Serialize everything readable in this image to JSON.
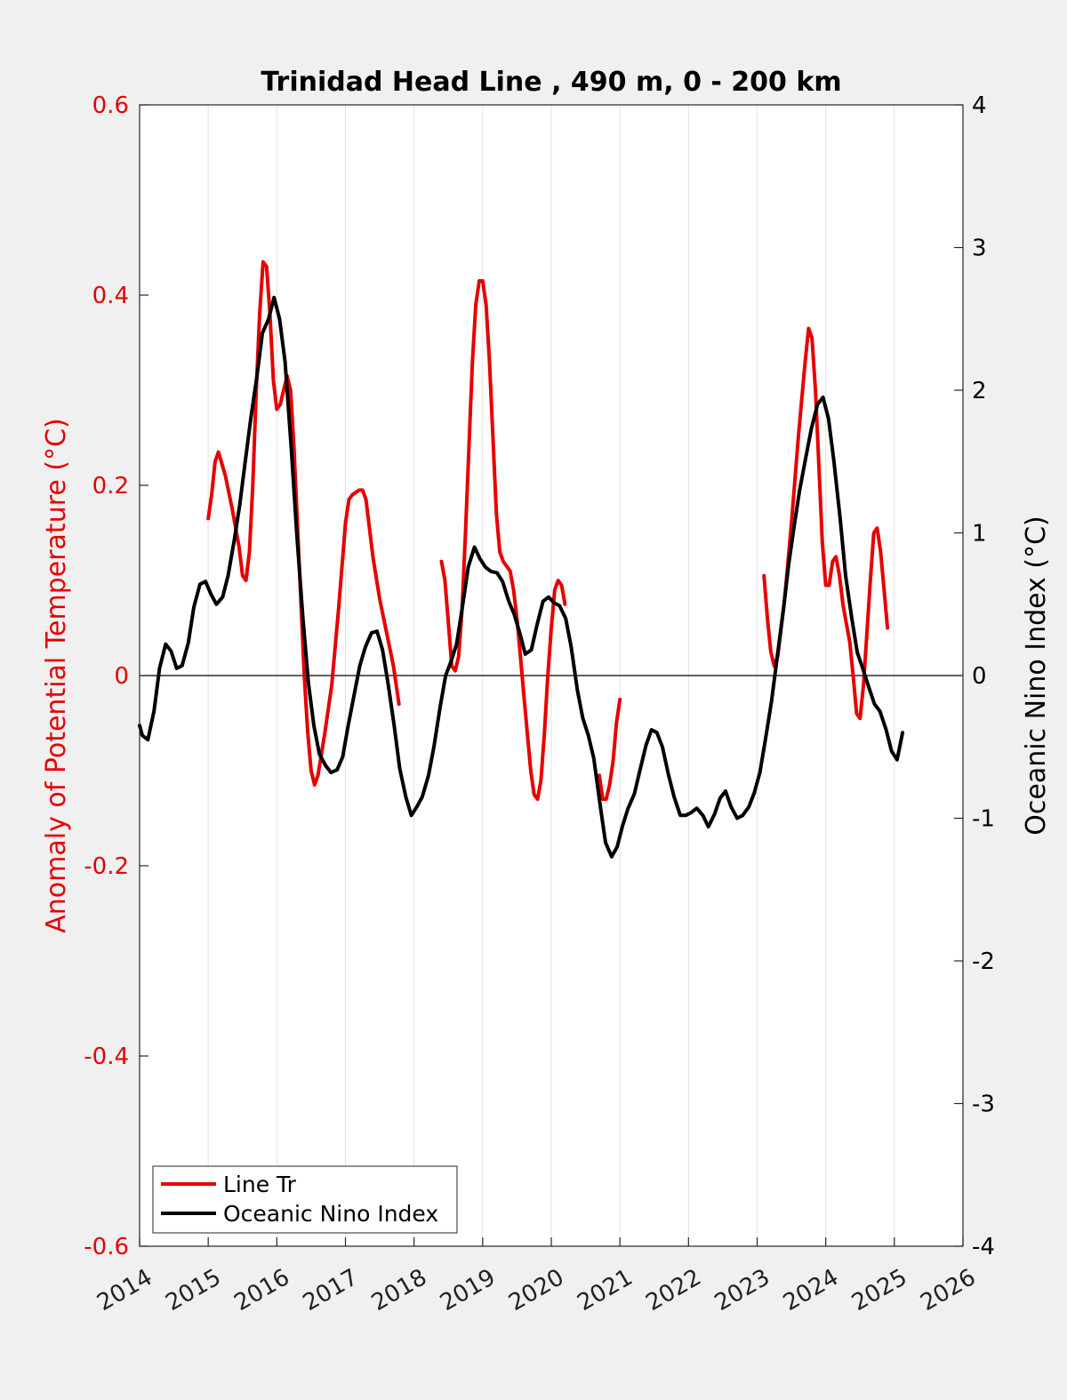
{
  "chart_data": {
    "type": "line",
    "title": "Trinidad Head Line , 490 m, 0 - 200 km",
    "ylabel": "Anomaly of Potential Temperature (°C)",
    "ylabel_right": "Oceanic Nino Index (°C)",
    "xlim": [
      2014,
      2026
    ],
    "ylim": [
      -0.6,
      0.6
    ],
    "ylim_right": [
      -4,
      4
    ],
    "x_ticks": [
      "2014",
      "2015",
      "2016",
      "2017",
      "2018",
      "2019",
      "2020",
      "2021",
      "2022",
      "2023",
      "2024",
      "2025",
      "2026"
    ],
    "y_ticks": [
      "-0.6",
      "-0.4",
      "-0.2",
      "0",
      "0.2",
      "0.4",
      "0.6"
    ],
    "y_ticks_right": [
      "-4",
      "-3",
      "-2",
      "-1",
      "0",
      "1",
      "2",
      "3",
      "4"
    ],
    "grid": "vertical",
    "legend_position": "bottom-left",
    "colors": {
      "line_tr": "#e60000",
      "oni": "#000000",
      "zero_line": "#000000"
    },
    "series": [
      {
        "name": "Line Tr",
        "axis": "left",
        "segments": [
          [
            [
              2015.0,
              0.165
            ],
            [
              2015.05,
              0.19
            ],
            [
              2015.1,
              0.225
            ],
            [
              2015.15,
              0.235
            ],
            [
              2015.25,
              0.21
            ],
            [
              2015.35,
              0.175
            ],
            [
              2015.45,
              0.135
            ],
            [
              2015.5,
              0.105
            ],
            [
              2015.55,
              0.1
            ],
            [
              2015.6,
              0.13
            ],
            [
              2015.65,
              0.2
            ],
            [
              2015.7,
              0.3
            ],
            [
              2015.75,
              0.38
            ],
            [
              2015.8,
              0.435
            ],
            [
              2015.85,
              0.43
            ],
            [
              2015.9,
              0.38
            ],
            [
              2015.95,
              0.31
            ],
            [
              2016.0,
              0.28
            ],
            [
              2016.05,
              0.285
            ],
            [
              2016.1,
              0.3
            ],
            [
              2016.15,
              0.315
            ],
            [
              2016.2,
              0.3
            ],
            [
              2016.25,
              0.24
            ],
            [
              2016.3,
              0.16
            ],
            [
              2016.35,
              0.08
            ],
            [
              2016.4,
              0.0
            ],
            [
              2016.45,
              -0.06
            ],
            [
              2016.5,
              -0.1
            ],
            [
              2016.55,
              -0.115
            ],
            [
              2016.6,
              -0.105
            ],
            [
              2016.7,
              -0.06
            ],
            [
              2016.8,
              -0.01
            ],
            [
              2016.9,
              0.07
            ],
            [
              2017.0,
              0.16
            ],
            [
              2017.05,
              0.185
            ],
            [
              2017.1,
              0.19
            ],
            [
              2017.2,
              0.195
            ],
            [
              2017.25,
              0.195
            ],
            [
              2017.3,
              0.185
            ],
            [
              2017.4,
              0.125
            ],
            [
              2017.5,
              0.08
            ],
            [
              2017.6,
              0.045
            ],
            [
              2017.7,
              0.01
            ],
            [
              2017.78,
              -0.03
            ]
          ],
          [
            [
              2018.4,
              0.12
            ],
            [
              2018.45,
              0.1
            ],
            [
              2018.5,
              0.055
            ],
            [
              2018.55,
              0.01
            ],
            [
              2018.6,
              0.005
            ],
            [
              2018.65,
              0.02
            ],
            [
              2018.7,
              0.07
            ],
            [
              2018.75,
              0.15
            ],
            [
              2018.8,
              0.24
            ],
            [
              2018.85,
              0.33
            ],
            [
              2018.9,
              0.39
            ],
            [
              2018.95,
              0.415
            ],
            [
              2019.0,
              0.415
            ],
            [
              2019.05,
              0.39
            ],
            [
              2019.1,
              0.33
            ],
            [
              2019.15,
              0.25
            ],
            [
              2019.2,
              0.17
            ],
            [
              2019.25,
              0.13
            ],
            [
              2019.3,
              0.12
            ],
            [
              2019.35,
              0.115
            ],
            [
              2019.4,
              0.11
            ],
            [
              2019.45,
              0.09
            ],
            [
              2019.5,
              0.06
            ],
            [
              2019.55,
              0.02
            ],
            [
              2019.6,
              -0.02
            ],
            [
              2019.65,
              -0.06
            ],
            [
              2019.7,
              -0.1
            ],
            [
              2019.75,
              -0.125
            ],
            [
              2019.8,
              -0.13
            ],
            [
              2019.85,
              -0.11
            ],
            [
              2019.9,
              -0.06
            ],
            [
              2019.95,
              0.0
            ],
            [
              2020.0,
              0.05
            ],
            [
              2020.05,
              0.09
            ],
            [
              2020.1,
              0.1
            ],
            [
              2020.15,
              0.095
            ],
            [
              2020.2,
              0.075
            ]
          ],
          [
            [
              2020.7,
              -0.105
            ],
            [
              2020.75,
              -0.13
            ],
            [
              2020.8,
              -0.13
            ],
            [
              2020.85,
              -0.115
            ],
            [
              2020.9,
              -0.09
            ],
            [
              2020.95,
              -0.05
            ],
            [
              2021.0,
              -0.025
            ]
          ],
          [
            [
              2023.1,
              0.105
            ],
            [
              2023.15,
              0.06
            ],
            [
              2023.2,
              0.025
            ],
            [
              2023.25,
              0.01
            ],
            [
              2023.3,
              0.02
            ],
            [
              2023.4,
              0.08
            ],
            [
              2023.5,
              0.16
            ],
            [
              2023.6,
              0.25
            ],
            [
              2023.7,
              0.33
            ],
            [
              2023.75,
              0.365
            ],
            [
              2023.8,
              0.355
            ],
            [
              2023.85,
              0.3
            ],
            [
              2023.9,
              0.22
            ],
            [
              2023.95,
              0.14
            ],
            [
              2024.0,
              0.095
            ],
            [
              2024.05,
              0.095
            ],
            [
              2024.1,
              0.12
            ],
            [
              2024.15,
              0.125
            ],
            [
              2024.2,
              0.105
            ],
            [
              2024.25,
              0.075
            ],
            [
              2024.3,
              0.055
            ],
            [
              2024.35,
              0.035
            ],
            [
              2024.4,
              0.0
            ],
            [
              2024.45,
              -0.04
            ],
            [
              2024.5,
              -0.045
            ],
            [
              2024.55,
              -0.01
            ],
            [
              2024.6,
              0.045
            ],
            [
              2024.65,
              0.1
            ],
            [
              2024.7,
              0.15
            ],
            [
              2024.75,
              0.155
            ],
            [
              2024.8,
              0.13
            ],
            [
              2024.85,
              0.09
            ],
            [
              2024.9,
              0.05
            ]
          ]
        ]
      },
      {
        "name": "Oceanic Nino Index",
        "axis": "right",
        "segments": [
          [
            [
              2014.0,
              -0.35
            ],
            [
              2014.04,
              -0.42
            ],
            [
              2014.12,
              -0.45
            ],
            [
              2014.21,
              -0.25
            ],
            [
              2014.29,
              0.05
            ],
            [
              2014.38,
              0.22
            ],
            [
              2014.46,
              0.17
            ],
            [
              2014.54,
              0.05
            ],
            [
              2014.62,
              0.07
            ],
            [
              2014.71,
              0.23
            ],
            [
              2014.79,
              0.48
            ],
            [
              2014.88,
              0.64
            ],
            [
              2014.96,
              0.66
            ],
            [
              2015.04,
              0.57
            ],
            [
              2015.12,
              0.5
            ],
            [
              2015.21,
              0.55
            ],
            [
              2015.29,
              0.7
            ],
            [
              2015.38,
              0.95
            ],
            [
              2015.46,
              1.2
            ],
            [
              2015.54,
              1.5
            ],
            [
              2015.62,
              1.8
            ],
            [
              2015.71,
              2.1
            ],
            [
              2015.79,
              2.4
            ],
            [
              2015.88,
              2.5
            ],
            [
              2015.96,
              2.65
            ],
            [
              2016.04,
              2.5
            ],
            [
              2016.12,
              2.2
            ],
            [
              2016.21,
              1.6
            ],
            [
              2016.29,
              1.0
            ],
            [
              2016.38,
              0.4
            ],
            [
              2016.46,
              -0.05
            ],
            [
              2016.54,
              -0.35
            ],
            [
              2016.62,
              -0.55
            ],
            [
              2016.71,
              -0.63
            ],
            [
              2016.79,
              -0.68
            ],
            [
              2016.88,
              -0.66
            ],
            [
              2016.96,
              -0.57
            ],
            [
              2017.04,
              -0.35
            ],
            [
              2017.12,
              -0.15
            ],
            [
              2017.21,
              0.07
            ],
            [
              2017.29,
              0.2
            ],
            [
              2017.38,
              0.3
            ],
            [
              2017.46,
              0.31
            ],
            [
              2017.54,
              0.18
            ],
            [
              2017.62,
              -0.05
            ],
            [
              2017.71,
              -0.35
            ],
            [
              2017.79,
              -0.65
            ],
            [
              2017.88,
              -0.85
            ],
            [
              2017.96,
              -0.98
            ],
            [
              2018.04,
              -0.92
            ],
            [
              2018.12,
              -0.85
            ],
            [
              2018.21,
              -0.7
            ],
            [
              2018.29,
              -0.5
            ],
            [
              2018.38,
              -0.22
            ],
            [
              2018.46,
              0.0
            ],
            [
              2018.54,
              0.1
            ],
            [
              2018.62,
              0.22
            ],
            [
              2018.71,
              0.5
            ],
            [
              2018.79,
              0.76
            ],
            [
              2018.88,
              0.9
            ],
            [
              2018.96,
              0.82
            ],
            [
              2019.04,
              0.76
            ],
            [
              2019.12,
              0.73
            ],
            [
              2019.21,
              0.72
            ],
            [
              2019.29,
              0.66
            ],
            [
              2019.38,
              0.52
            ],
            [
              2019.46,
              0.43
            ],
            [
              2019.54,
              0.3
            ],
            [
              2019.62,
              0.15
            ],
            [
              2019.71,
              0.18
            ],
            [
              2019.79,
              0.35
            ],
            [
              2019.88,
              0.52
            ],
            [
              2019.96,
              0.55
            ],
            [
              2020.04,
              0.51
            ],
            [
              2020.12,
              0.49
            ],
            [
              2020.21,
              0.4
            ],
            [
              2020.29,
              0.2
            ],
            [
              2020.38,
              -0.1
            ],
            [
              2020.46,
              -0.3
            ],
            [
              2020.54,
              -0.42
            ],
            [
              2020.62,
              -0.58
            ],
            [
              2020.71,
              -0.9
            ],
            [
              2020.79,
              -1.17
            ],
            [
              2020.88,
              -1.27
            ],
            [
              2020.96,
              -1.2
            ],
            [
              2021.04,
              -1.05
            ],
            [
              2021.12,
              -0.93
            ],
            [
              2021.21,
              -0.83
            ],
            [
              2021.29,
              -0.67
            ],
            [
              2021.38,
              -0.49
            ],
            [
              2021.46,
              -0.38
            ],
            [
              2021.54,
              -0.4
            ],
            [
              2021.62,
              -0.5
            ],
            [
              2021.71,
              -0.7
            ],
            [
              2021.79,
              -0.85
            ],
            [
              2021.88,
              -0.98
            ],
            [
              2021.96,
              -0.98
            ],
            [
              2022.04,
              -0.96
            ],
            [
              2022.12,
              -0.93
            ],
            [
              2022.21,
              -0.98
            ],
            [
              2022.29,
              -1.06
            ],
            [
              2022.38,
              -0.97
            ],
            [
              2022.46,
              -0.86
            ],
            [
              2022.54,
              -0.81
            ],
            [
              2022.62,
              -0.92
            ],
            [
              2022.71,
              -1.0
            ],
            [
              2022.79,
              -0.98
            ],
            [
              2022.88,
              -0.92
            ],
            [
              2022.96,
              -0.82
            ],
            [
              2023.04,
              -0.68
            ],
            [
              2023.12,
              -0.45
            ],
            [
              2023.21,
              -0.18
            ],
            [
              2023.29,
              0.12
            ],
            [
              2023.38,
              0.45
            ],
            [
              2023.46,
              0.78
            ],
            [
              2023.54,
              1.05
            ],
            [
              2023.62,
              1.3
            ],
            [
              2023.71,
              1.53
            ],
            [
              2023.79,
              1.73
            ],
            [
              2023.88,
              1.9
            ],
            [
              2023.96,
              1.95
            ],
            [
              2024.04,
              1.8
            ],
            [
              2024.12,
              1.5
            ],
            [
              2024.21,
              1.1
            ],
            [
              2024.29,
              0.7
            ],
            [
              2024.38,
              0.4
            ],
            [
              2024.46,
              0.16
            ],
            [
              2024.54,
              0.05
            ],
            [
              2024.62,
              -0.07
            ],
            [
              2024.71,
              -0.2
            ],
            [
              2024.79,
              -0.25
            ],
            [
              2024.88,
              -0.38
            ],
            [
              2024.96,
              -0.53
            ],
            [
              2025.04,
              -0.59
            ],
            [
              2025.12,
              -0.4
            ]
          ]
        ]
      }
    ]
  }
}
